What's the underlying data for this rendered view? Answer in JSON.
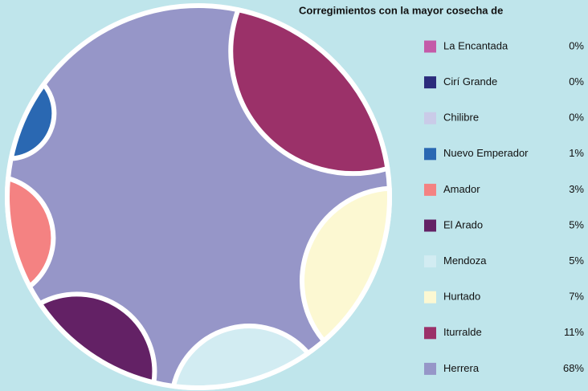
{
  "chart_data": {
    "type": "pie",
    "title": "Corregimientos con la mayor cosecha de",
    "categories": [
      "La Encantada",
      "Cirí Grande",
      "Chilibre",
      "Nuevo Emperador",
      "Amador",
      "El Arado",
      "Mendoza",
      "Hurtado",
      "Iturralde",
      "Herrera"
    ],
    "values": [
      0,
      0,
      0,
      1,
      3,
      5,
      5,
      7,
      11,
      68
    ],
    "value_labels": [
      "0%",
      "0%",
      "0%",
      "1%",
      "3%",
      "5%",
      "5%",
      "7%",
      "11%",
      "68%"
    ],
    "colors": [
      "#c45aa8",
      "#2b2b7c",
      "#cacbe8",
      "#2a68b2",
      "#f48282",
      "#632165",
      "#d2ecf2",
      "#fcf8d2",
      "#9b3169",
      "#9696c8"
    ],
    "legend": "right"
  }
}
